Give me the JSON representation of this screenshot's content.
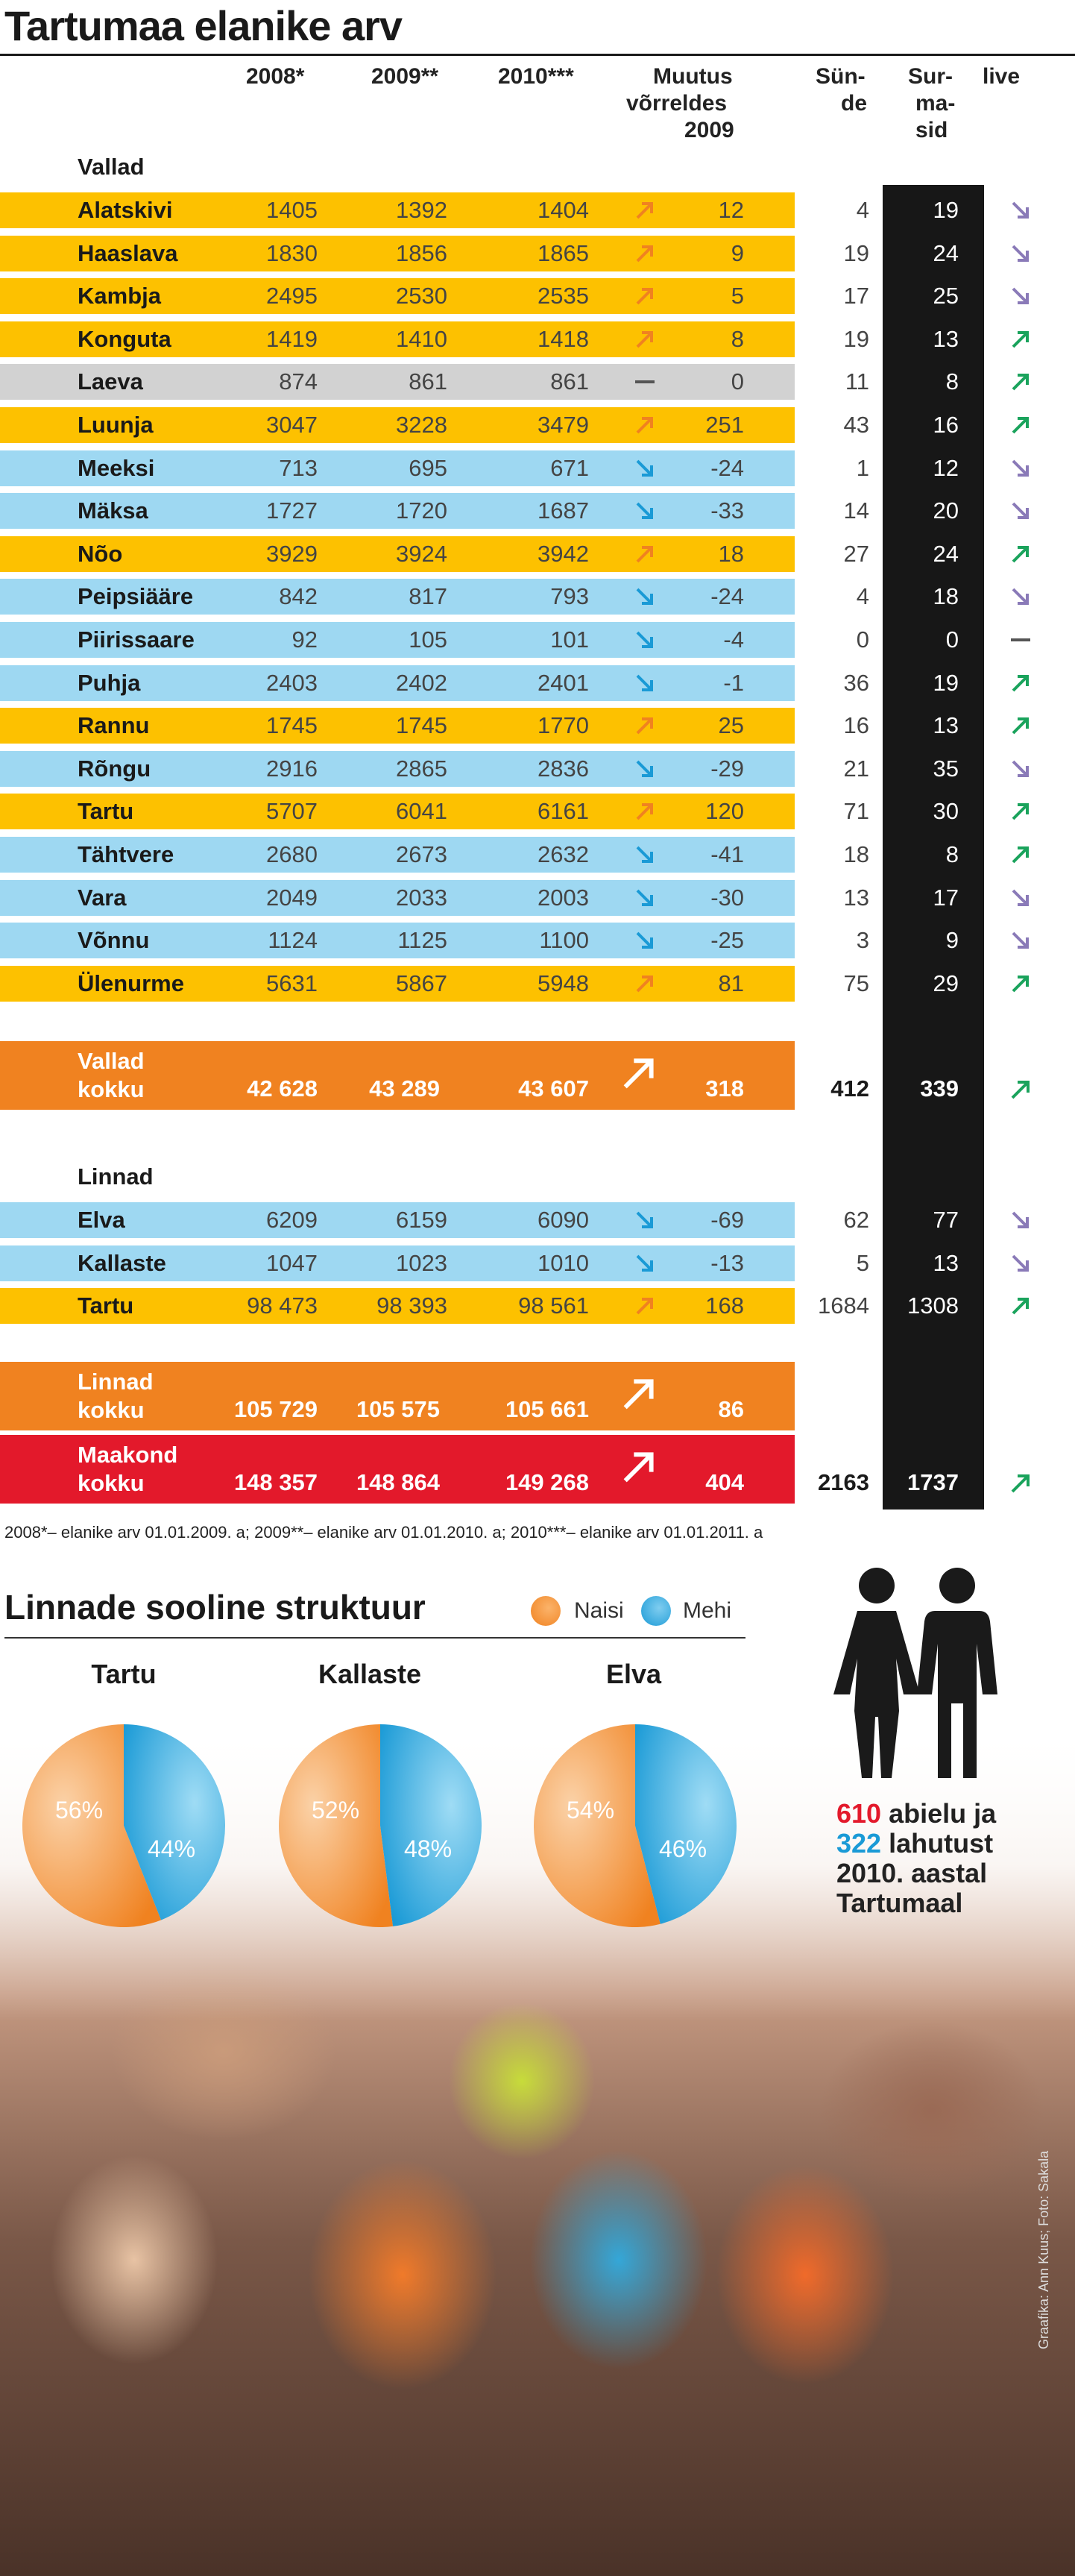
{
  "title": "Tartumaa elanike arv",
  "headers": {
    "y2008": "2008*",
    "y2009": "2009**",
    "y2010": "2010***",
    "change": [
      "Muutus",
      "võrreldes",
      "2009"
    ],
    "births": [
      "Sün-",
      "de"
    ],
    "deaths": [
      "Sur-",
      "ma-",
      "sid"
    ],
    "trend": "live"
  },
  "sections": {
    "parishes": "Vallad",
    "towns": "Linnad"
  },
  "colors": {
    "yellow": "#fdc100",
    "blue": "#9ed8f2",
    "gray": "#d2d2d2",
    "orange": "#f08220",
    "red": "#e3192b",
    "up_arrow": "#f08220",
    "down_arrow": "#1a9ad6",
    "trend_up": "#1aa35c",
    "trend_down": "#8a7ab8",
    "women": "#f08220",
    "men": "#1a9ad6"
  },
  "chart_data": [
    {
      "type": "table",
      "title": "Tartumaa elanike arv",
      "columns": [
        "2008*",
        "2009**",
        "2010***",
        "Muutus võrreldes 2009",
        "Sünde",
        "Surmasid",
        "live"
      ],
      "parishes": [
        {
          "name": "Alatskivi",
          "y2008": "1405",
          "y2009": "1392",
          "y2010": "1404",
          "dir": "up",
          "change": "12",
          "births": "4",
          "deaths": "19",
          "trend": "down",
          "color": "yellow"
        },
        {
          "name": "Haaslava",
          "y2008": "1830",
          "y2009": "1856",
          "y2010": "1865",
          "dir": "up",
          "change": "9",
          "births": "19",
          "deaths": "24",
          "trend": "down",
          "color": "yellow"
        },
        {
          "name": "Kambja",
          "y2008": "2495",
          "y2009": "2530",
          "y2010": "2535",
          "dir": "up",
          "change": "5",
          "births": "17",
          "deaths": "25",
          "trend": "down",
          "color": "yellow"
        },
        {
          "name": "Konguta",
          "y2008": "1419",
          "y2009": "1410",
          "y2010": "1418",
          "dir": "up",
          "change": "8",
          "births": "19",
          "deaths": "13",
          "trend": "up",
          "color": "yellow"
        },
        {
          "name": "Laeva",
          "y2008": "874",
          "y2009": "861",
          "y2010": "861",
          "dir": "flat",
          "change": "0",
          "births": "11",
          "deaths": "8",
          "trend": "up",
          "color": "gray"
        },
        {
          "name": "Luunja",
          "y2008": "3047",
          "y2009": "3228",
          "y2010": "3479",
          "dir": "up",
          "change": "251",
          "births": "43",
          "deaths": "16",
          "trend": "up",
          "color": "yellow"
        },
        {
          "name": "Meeksi",
          "y2008": "713",
          "y2009": "695",
          "y2010": "671",
          "dir": "down",
          "change": "-24",
          "births": "1",
          "deaths": "12",
          "trend": "down",
          "color": "blue"
        },
        {
          "name": "Mäksa",
          "y2008": "1727",
          "y2009": "1720",
          "y2010": "1687",
          "dir": "down",
          "change": "-33",
          "births": "14",
          "deaths": "20",
          "trend": "down",
          "color": "blue"
        },
        {
          "name": "Nõo",
          "y2008": "3929",
          "y2009": "3924",
          "y2010": "3942",
          "dir": "up",
          "change": "18",
          "births": "27",
          "deaths": "24",
          "trend": "up",
          "color": "yellow"
        },
        {
          "name": "Peipsiääre",
          "y2008": "842",
          "y2009": "817",
          "y2010": "793",
          "dir": "down",
          "change": "-24",
          "births": "4",
          "deaths": "18",
          "trend": "down",
          "color": "blue"
        },
        {
          "name": "Piirissaare",
          "y2008": "92",
          "y2009": "105",
          "y2010": "101",
          "dir": "down",
          "change": "-4",
          "births": "0",
          "deaths": "0",
          "trend": "flat",
          "color": "blue"
        },
        {
          "name": "Puhja",
          "y2008": "2403",
          "y2009": "2402",
          "y2010": "2401",
          "dir": "down",
          "change": "-1",
          "births": "36",
          "deaths": "19",
          "trend": "up",
          "color": "blue"
        },
        {
          "name": "Rannu",
          "y2008": "1745",
          "y2009": "1745",
          "y2010": "1770",
          "dir": "up",
          "change": "25",
          "births": "16",
          "deaths": "13",
          "trend": "up",
          "color": "yellow"
        },
        {
          "name": "Rõngu",
          "y2008": "2916",
          "y2009": "2865",
          "y2010": "2836",
          "dir": "down",
          "change": "-29",
          "births": "21",
          "deaths": "35",
          "trend": "down",
          "color": "blue"
        },
        {
          "name": "Tartu",
          "y2008": "5707",
          "y2009": "6041",
          "y2010": "6161",
          "dir": "up",
          "change": "120",
          "births": "71",
          "deaths": "30",
          "trend": "up",
          "color": "yellow"
        },
        {
          "name": "Tähtvere",
          "y2008": "2680",
          "y2009": "2673",
          "y2010": "2632",
          "dir": "down",
          "change": "-41",
          "births": "18",
          "deaths": "8",
          "trend": "up",
          "color": "blue"
        },
        {
          "name": "Vara",
          "y2008": "2049",
          "y2009": "2033",
          "y2010": "2003",
          "dir": "down",
          "change": "-30",
          "births": "13",
          "deaths": "17",
          "trend": "down",
          "color": "blue"
        },
        {
          "name": "Võnnu",
          "y2008": "1124",
          "y2009": "1125",
          "y2010": "1100",
          "dir": "down",
          "change": "-25",
          "births": "3",
          "deaths": "9",
          "trend": "down",
          "color": "blue"
        },
        {
          "name": "Ülenurme",
          "y2008": "5631",
          "y2009": "5867",
          "y2010": "5948",
          "dir": "up",
          "change": "81",
          "births": "75",
          "deaths": "29",
          "trend": "up",
          "color": "yellow"
        }
      ],
      "parishes_total": {
        "label": [
          "Vallad",
          "kokku"
        ],
        "y2008": "42 628",
        "y2009": "43 289",
        "y2010": "43 607",
        "change": "318",
        "births": "412",
        "deaths": "339",
        "trend": "up"
      },
      "towns": [
        {
          "name": "Elva",
          "y2008": "6209",
          "y2009": "6159",
          "y2010": "6090",
          "dir": "down",
          "change": "-69",
          "births": "62",
          "deaths": "77",
          "trend": "down",
          "color": "blue"
        },
        {
          "name": "Kallaste",
          "y2008": "1047",
          "y2009": "1023",
          "y2010": "1010",
          "dir": "down",
          "change": "-13",
          "births": "5",
          "deaths": "13",
          "trend": "down",
          "color": "blue"
        },
        {
          "name": "Tartu",
          "y2008": "98 473",
          "y2009": "98 393",
          "y2010": "98 561",
          "dir": "up",
          "change": "168",
          "births": "1684",
          "deaths": "1308",
          "trend": "up",
          "color": "yellow"
        }
      ],
      "towns_total": {
        "label": [
          "Linnad",
          "kokku"
        ],
        "y2008": "105 729",
        "y2009": "105 575",
        "y2010": "105 661",
        "change": "86"
      },
      "county_total": {
        "label": [
          "Maakond",
          "kokku"
        ],
        "y2008": "148 357",
        "y2009": "148 864",
        "y2010": "149 268",
        "change": "404",
        "births": "2163",
        "deaths": "1737",
        "trend": "up"
      }
    },
    {
      "type": "pie",
      "title": "Linnade sooline struktuur",
      "legend": [
        "Naisi",
        "Mehi"
      ],
      "series": [
        {
          "name": "Tartu",
          "values": [
            56,
            44
          ],
          "labels": [
            "56%",
            "44%"
          ]
        },
        {
          "name": "Kallaste",
          "values": [
            52,
            48
          ],
          "labels": [
            "52%",
            "48%"
          ]
        },
        {
          "name": "Elva",
          "values": [
            54,
            46
          ],
          "labels": [
            "54%",
            "46%"
          ]
        }
      ]
    }
  ],
  "footnote": "2008*– elanike arv 01.01.2009. a; 2009**– elanike arv 01.01.2010. a; 2010***– elanike arv 01.01.2011. a",
  "info": {
    "marriages": "610",
    "marriages_text": "abielu ja",
    "divorces": "322",
    "divorces_text": "lahutust",
    "line3": "2010. aastal",
    "line4": "Tartumaal"
  },
  "credit": "Graafika: Ann Kuus; Foto: Sakala"
}
